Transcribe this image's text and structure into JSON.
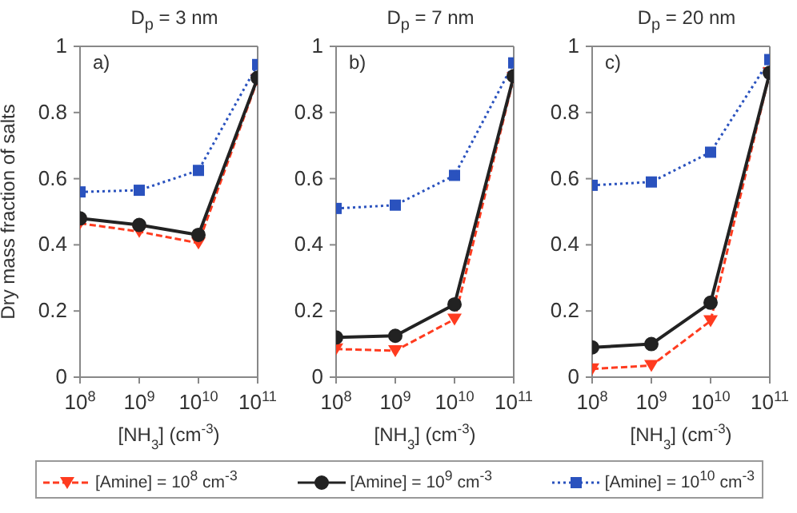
{
  "chart_data": [
    {
      "type": "line",
      "title": "D$_{p}$ = 3 nm",
      "xlabel": "[NH$_{3}$] (cm$^{-3}$)",
      "ylabel": "Dry mass fraction of salts",
      "annotations": [
        "a)"
      ],
      "log": "x",
      "x": [
        100000000,
        1000000000,
        10000000000,
        100000000000
      ],
      "xlim": [
        100000000,
        100000000000
      ],
      "xticks": [
        {
          "value": 100000000,
          "label": "10$^{8}$"
        },
        {
          "value": 1000000000,
          "label": "10$^{9}$"
        },
        {
          "value": 10000000000,
          "label": "10$^{10}$"
        },
        {
          "value": 100000000000,
          "label": "10$^{11}$"
        }
      ],
      "ylim": [
        0,
        1
      ],
      "yticks": [
        0,
        0.2,
        0.4,
        0.6,
        0.8,
        1
      ],
      "grid": false,
      "legend": "bottom",
      "series": [
        {
          "name": "[Amine] = 10$^{8}$ cm$^{-3}$",
          "color": "#ff3b1f",
          "marker": "triangle",
          "line_style": "dashed",
          "values": [
            0.465,
            0.44,
            0.405,
            0.9
          ]
        },
        {
          "name": "[Amine] = 10$^{9}$ cm$^{-3}$",
          "color": "#222222",
          "marker": "circle",
          "line_style": "solid",
          "values": [
            0.48,
            0.46,
            0.43,
            0.905
          ]
        },
        {
          "name": "[Amine] = 10$^{10}$ cm$^{-3}$",
          "color": "#2a52be",
          "marker": "square",
          "line_style": "dotted",
          "values": [
            0.56,
            0.565,
            0.625,
            0.945
          ]
        }
      ]
    },
    {
      "type": "line",
      "title": "D$_{p}$ = 7 nm",
      "xlabel": "[NH$_{3}$] (cm$^{-3}$)",
      "annotations": [
        "b)"
      ],
      "log": "x",
      "x": [
        100000000,
        1000000000,
        10000000000,
        100000000000
      ],
      "xlim": [
        100000000,
        100000000000
      ],
      "xticks": [
        {
          "value": 100000000,
          "label": "10$^{8}$"
        },
        {
          "value": 1000000000,
          "label": "10$^{9}$"
        },
        {
          "value": 10000000000,
          "label": "10$^{10}$"
        },
        {
          "value": 100000000000,
          "label": "10$^{11}$"
        }
      ],
      "ylim": [
        0,
        1
      ],
      "yticks": [
        0,
        0.2,
        0.4,
        0.6,
        0.8,
        1
      ],
      "grid": false,
      "series": [
        {
          "color": "#ff3b1f",
          "marker": "triangle",
          "line_style": "dashed",
          "values": [
            0.085,
            0.08,
            0.175,
            0.905
          ]
        },
        {
          "color": "#222222",
          "marker": "circle",
          "line_style": "solid",
          "values": [
            0.12,
            0.125,
            0.22,
            0.91
          ]
        },
        {
          "color": "#2a52be",
          "marker": "square",
          "line_style": "dotted",
          "values": [
            0.51,
            0.52,
            0.61,
            0.95
          ]
        }
      ]
    },
    {
      "type": "line",
      "title": "D$_{p}$ = 20 nm",
      "xlabel": "[NH$_{3}$] (cm$^{-3}$)",
      "annotations": [
        "c)"
      ],
      "log": "x",
      "x": [
        100000000,
        1000000000,
        10000000000,
        100000000000
      ],
      "xlim": [
        100000000,
        100000000000
      ],
      "xticks": [
        {
          "value": 100000000,
          "label": "10$^{8}$"
        },
        {
          "value": 1000000000,
          "label": "10$^{9}$"
        },
        {
          "value": 10000000000,
          "label": "10$^{10}$"
        },
        {
          "value": 100000000000,
          "label": "10$^{11}$"
        }
      ],
      "ylim": [
        0,
        1
      ],
      "yticks": [
        0,
        0.2,
        0.4,
        0.6,
        0.8,
        1
      ],
      "grid": false,
      "series": [
        {
          "color": "#ff3b1f",
          "marker": "triangle",
          "line_style": "dashed",
          "values": [
            0.025,
            0.035,
            0.17,
            0.92
          ]
        },
        {
          "color": "#222222",
          "marker": "circle",
          "line_style": "solid",
          "values": [
            0.09,
            0.1,
            0.225,
            0.92
          ]
        },
        {
          "color": "#2a52be",
          "marker": "square",
          "line_style": "dotted",
          "values": [
            0.58,
            0.59,
            0.68,
            0.96
          ]
        }
      ]
    }
  ]
}
